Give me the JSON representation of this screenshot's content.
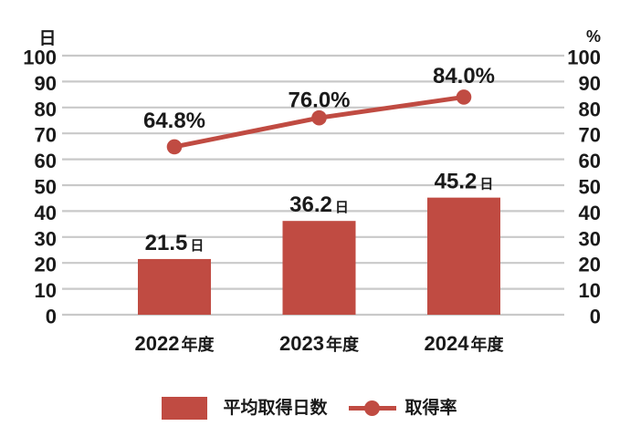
{
  "chart_data": {
    "type": "combo_bar_line",
    "categories": [
      "2022年度",
      "2023年度",
      "2024年度"
    ],
    "series": [
      {
        "name": "平均取得日数",
        "type": "bar",
        "axis": "left",
        "unit": "日",
        "values": [
          21.5,
          36.2,
          45.2
        ],
        "labels": [
          "21.5日",
          "36.2日",
          "45.2日"
        ]
      },
      {
        "name": "取得率",
        "type": "line",
        "axis": "right",
        "unit": "%",
        "values": [
          64.8,
          76.0,
          84.0
        ],
        "labels": [
          "64.8%",
          "76.0%",
          "84.0%"
        ]
      }
    ],
    "axes": {
      "left": {
        "title": "日",
        "min": 0,
        "max": 100,
        "step": 10
      },
      "right": {
        "title": "%",
        "min": 0,
        "max": 100,
        "step": 10
      }
    },
    "legend": {
      "position": "bottom",
      "items": [
        "平均取得日数",
        "取得率"
      ]
    },
    "grid": true,
    "colors": {
      "accent": "#c04b42",
      "gridline": "#c9c9c9",
      "text": "#1a1a1a",
      "background": "#ffffff"
    }
  }
}
